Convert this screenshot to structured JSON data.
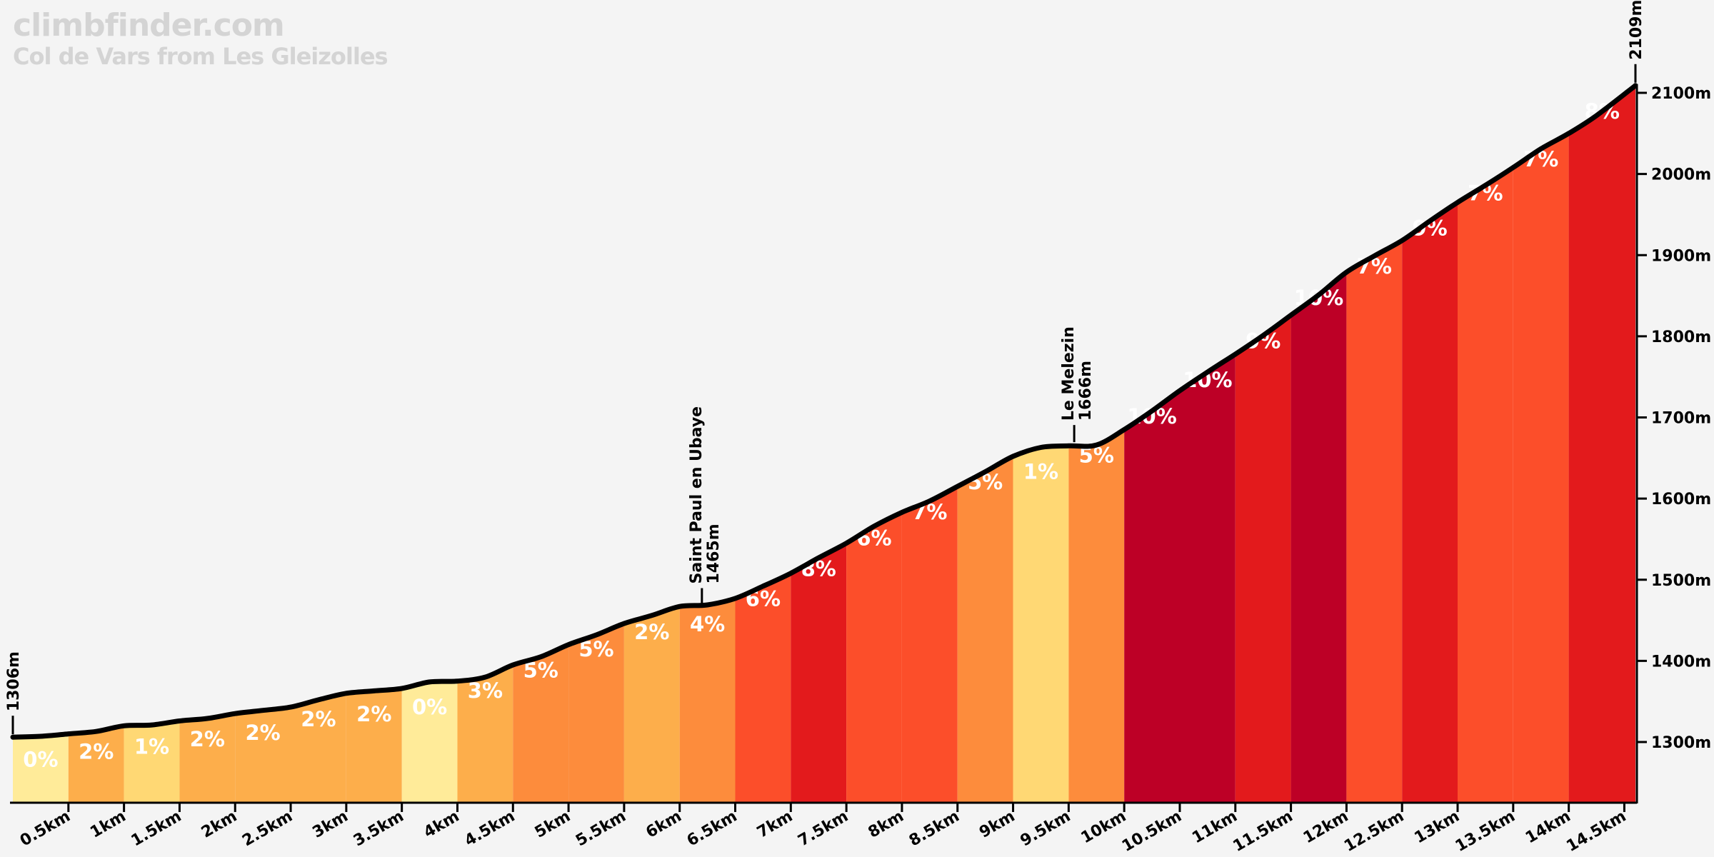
{
  "header": {
    "site": "climbfinder.com",
    "climb_name": "Col de Vars from Les Gleizolles"
  },
  "chart_data": {
    "type": "area",
    "title": "Col de Vars from Les Gleizolles",
    "xlabel": "",
    "ylabel": "",
    "xlim": [
      0,
      14.6
    ],
    "ylim": [
      1230,
      2150
    ],
    "x_unit": "km",
    "y_unit": "m",
    "grid": false,
    "start_elevation_label": "1306m",
    "summit_elevation_label": "2109m",
    "x_ticks": [
      "0.5km",
      "1km",
      "1.5km",
      "2km",
      "2.5km",
      "3km",
      "3.5km",
      "4km",
      "4.5km",
      "5km",
      "5.5km",
      "6km",
      "6.5km",
      "7km",
      "7.5km",
      "8km",
      "8.5km",
      "9km",
      "9.5km",
      "10km",
      "10.5km",
      "11km",
      "11.5km",
      "12km",
      "12.5km",
      "13km",
      "13.5km",
      "14km",
      "14.5km"
    ],
    "x_tick_values": [
      0.5,
      1,
      1.5,
      2,
      2.5,
      3,
      3.5,
      4,
      4.5,
      5,
      5.5,
      6,
      6.5,
      7,
      7.5,
      8,
      8.5,
      9,
      9.5,
      10,
      10.5,
      11,
      11.5,
      12,
      12.5,
      13,
      13.5,
      14,
      14.5
    ],
    "y_ticks": [
      "1300m",
      "1400m",
      "1500m",
      "1600m",
      "1700m",
      "1800m",
      "1900m",
      "2000m",
      "2100m"
    ],
    "y_tick_values": [
      1300,
      1400,
      1500,
      1600,
      1700,
      1800,
      1900,
      2000,
      2100
    ],
    "segments": [
      {
        "start": 0.0,
        "end": 0.5,
        "gradient": "0%",
        "color": "#ffeb99"
      },
      {
        "start": 0.5,
        "end": 1.0,
        "gradient": "2%",
        "color": "#fdae4b"
      },
      {
        "start": 1.0,
        "end": 1.5,
        "gradient": "1%",
        "color": "#ffd874"
      },
      {
        "start": 1.5,
        "end": 2.0,
        "gradient": "2%",
        "color": "#fdae4b"
      },
      {
        "start": 2.0,
        "end": 2.5,
        "gradient": "2%",
        "color": "#fdae4b"
      },
      {
        "start": 2.5,
        "end": 3.0,
        "gradient": "2%",
        "color": "#fdae4b"
      },
      {
        "start": 3.0,
        "end": 3.5,
        "gradient": "2%",
        "color": "#fdae4b"
      },
      {
        "start": 3.5,
        "end": 4.0,
        "gradient": "0%",
        "color": "#ffeb99"
      },
      {
        "start": 4.0,
        "end": 4.5,
        "gradient": "3%",
        "color": "#fdae4b"
      },
      {
        "start": 4.5,
        "end": 5.0,
        "gradient": "5%",
        "color": "#fd8c3c"
      },
      {
        "start": 5.0,
        "end": 5.5,
        "gradient": "5%",
        "color": "#fd8c3c"
      },
      {
        "start": 5.5,
        "end": 6.0,
        "gradient": "2%",
        "color": "#fdae4b"
      },
      {
        "start": 6.0,
        "end": 6.5,
        "gradient": "4%",
        "color": "#fd8c3c"
      },
      {
        "start": 6.5,
        "end": 7.0,
        "gradient": "6%",
        "color": "#fc4e2a"
      },
      {
        "start": 7.0,
        "end": 7.5,
        "gradient": "8%",
        "color": "#e31a1c"
      },
      {
        "start": 7.5,
        "end": 8.0,
        "gradient": "6%",
        "color": "#fc4e2a"
      },
      {
        "start": 8.0,
        "end": 8.5,
        "gradient": "7%",
        "color": "#fc4e2a"
      },
      {
        "start": 8.5,
        "end": 9.0,
        "gradient": "5%",
        "color": "#fd8c3c"
      },
      {
        "start": 9.0,
        "end": 9.5,
        "gradient": "1%",
        "color": "#ffd874"
      },
      {
        "start": 9.5,
        "end": 10.0,
        "gradient": "5%",
        "color": "#fd8c3c"
      },
      {
        "start": 10.0,
        "end": 10.5,
        "gradient": "10%",
        "color": "#bd0026"
      },
      {
        "start": 10.5,
        "end": 11.0,
        "gradient": "10%",
        "color": "#bd0026"
      },
      {
        "start": 11.0,
        "end": 11.5,
        "gradient": "9%",
        "color": "#e31a1c"
      },
      {
        "start": 11.5,
        "end": 12.0,
        "gradient": "10%",
        "color": "#bd0026"
      },
      {
        "start": 12.0,
        "end": 12.5,
        "gradient": "7%",
        "color": "#fc4e2a"
      },
      {
        "start": 12.5,
        "end": 13.0,
        "gradient": "9%",
        "color": "#e31a1c"
      },
      {
        "start": 13.0,
        "end": 13.5,
        "gradient": "7%",
        "color": "#fc4e2a"
      },
      {
        "start": 13.5,
        "end": 14.0,
        "gradient": "7%",
        "color": "#fc4e2a"
      },
      {
        "start": 14.0,
        "end": 14.6,
        "gradient": "8%",
        "color": "#e31a1c"
      }
    ],
    "profile": {
      "x": [
        0,
        0.25,
        0.5,
        0.75,
        1.0,
        1.25,
        1.5,
        1.75,
        2.0,
        2.25,
        2.5,
        2.75,
        3.0,
        3.25,
        3.5,
        3.75,
        4.0,
        4.25,
        4.5,
        4.75,
        5.0,
        5.25,
        5.5,
        5.75,
        6.0,
        6.25,
        6.5,
        6.75,
        7.0,
        7.25,
        7.5,
        7.75,
        8.0,
        8.25,
        8.5,
        8.75,
        9.0,
        9.25,
        9.5,
        9.75,
        10.0,
        10.25,
        10.5,
        10.75,
        11.0,
        11.25,
        11.5,
        11.75,
        12.0,
        12.25,
        12.5,
        12.75,
        13.0,
        13.25,
        13.5,
        13.75,
        14.0,
        14.25,
        14.6
      ],
      "y": [
        1306,
        1307,
        1310,
        1313,
        1320,
        1321,
        1326,
        1329,
        1335,
        1339,
        1343,
        1352,
        1360,
        1363,
        1366,
        1374,
        1375,
        1380,
        1395,
        1405,
        1420,
        1432,
        1446,
        1456,
        1467,
        1469,
        1477,
        1492,
        1508,
        1527,
        1545,
        1566,
        1583,
        1597,
        1615,
        1633,
        1652,
        1663,
        1665,
        1666,
        1685,
        1708,
        1733,
        1756,
        1778,
        1801,
        1826,
        1851,
        1879,
        1899,
        1918,
        1942,
        1965,
        1986,
        2008,
        2031,
        2050,
        2072,
        2109
      ]
    },
    "waypoints": [
      {
        "km": 6.2,
        "elevation": 1465,
        "name": "Saint Paul en Ubaye",
        "elevation_label": "1465m"
      },
      {
        "km": 9.55,
        "elevation": 1666,
        "name": "Le Melezin",
        "elevation_label": "1666m"
      }
    ],
    "colors": {
      "background": "#f4f4f4",
      "profile_line": "#000000",
      "gradient_label": "#ffffff"
    }
  }
}
